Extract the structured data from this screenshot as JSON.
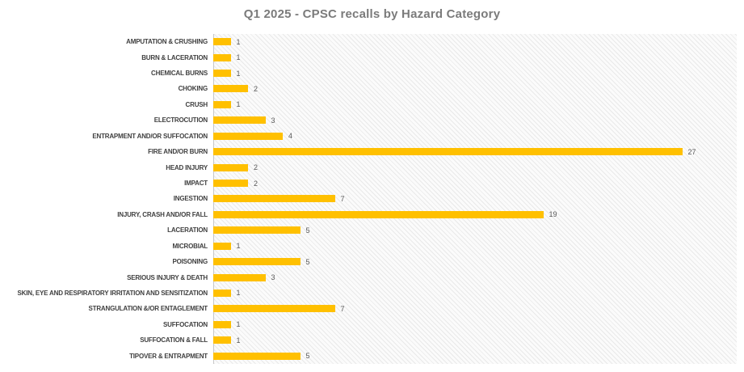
{
  "chart_data": {
    "type": "bar",
    "orientation": "horizontal",
    "title": "Q1 2025 - CPSC recalls by Hazard Category",
    "categories": [
      "AMPUTATION & CRUSHING",
      "BURN & LACERATION",
      "CHEMICAL BURNS",
      "CHOKING",
      "CRUSH",
      "ELECTROCUTION",
      "ENTRAPMENT AND/OR SUFFOCATION",
      "FIRE AND/OR BURN",
      "HEAD INJURY",
      "IMPACT",
      "INGESTION",
      "INJURY, CRASH AND/OR FALL",
      "LACERATION",
      "MICROBIAL",
      "POISONING",
      "SERIOUS INJURY & DEATH",
      "SKIN, EYE AND RESPIRATORY IRRITATION AND SENSITIZATION",
      "STRANGULATION &/OR ENTAGLEMENT",
      "SUFFOCATION",
      "SUFFOCATION & FALL",
      "TIPOVER & ENTRAPMENT"
    ],
    "values": [
      1,
      1,
      1,
      2,
      1,
      3,
      4,
      27,
      2,
      2,
      7,
      19,
      5,
      1,
      5,
      3,
      1,
      7,
      1,
      1,
      5
    ],
    "xlabel": "",
    "ylabel": "",
    "xlim": [
      0,
      30
    ],
    "data_labels": true,
    "legend": false,
    "grid": false,
    "bar_color": "#FFC000",
    "plot_background": "light-diagonal-hatch",
    "title_color": "#7b7b7b",
    "category_label_color": "#404040",
    "value_label_color": "#595959"
  }
}
